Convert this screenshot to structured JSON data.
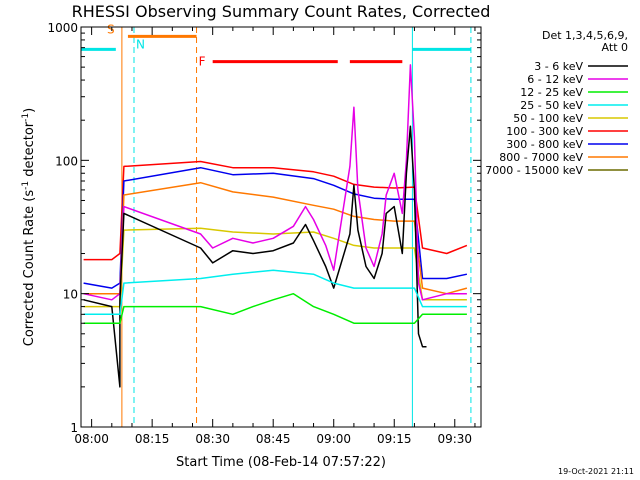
{
  "chart_data": {
    "type": "line",
    "title": "RHESSI Observing Summary Count Rates, Corrected",
    "xlabel": "Start Time (08-Feb-14 07:57:22)",
    "ylabel_main": "Corrected Count Rate (s",
    "ylabel_sup1": "-1",
    "ylabel_mid": " detector",
    "ylabel_sup2": "-1",
    "ylabel_end": ")",
    "xlim": [
      "07:57:22",
      "09:36:30"
    ],
    "ylim": [
      1,
      1000
    ],
    "yscale": "log",
    "x_ticks": [
      "08:00",
      "08:15",
      "08:30",
      "08:45",
      "09:00",
      "09:15",
      "09:30"
    ],
    "y_ticks": [
      {
        "label": "1",
        "value": 1
      },
      {
        "label": "10",
        "value": 10
      },
      {
        "label": "100",
        "value": 100
      },
      {
        "label": "1000",
        "value": 1000
      }
    ],
    "legend": {
      "header1": "Det 1,3,4,5,6,9,",
      "header2": "Att 0",
      "placement": "right",
      "entries": [
        {
          "label": "3 - 6 keV",
          "color": "#000000"
        },
        {
          "label": "6 - 12 keV",
          "color": "#e600e6"
        },
        {
          "label": "12 - 25 keV",
          "color": "#00ee00"
        },
        {
          "label": "25 - 50 keV",
          "color": "#00eeee"
        },
        {
          "label": "50 - 100 keV",
          "color": "#d8c800"
        },
        {
          "label": "100 - 300 keV",
          "color": "#ff0000"
        },
        {
          "label": "300 - 800 keV",
          "color": "#0000ee"
        },
        {
          "label": "800 - 7000 keV",
          "color": "#ff7800"
        },
        {
          "label": "7000 - 15000 keV",
          "color": "#6b6b00"
        }
      ]
    },
    "flags": [
      {
        "label": "S",
        "color": "#ff7800",
        "start": "07:57:22",
        "end": "08:06:00",
        "level": 850
      },
      {
        "label": "N",
        "color": "#00e5e5",
        "start": "08:09:00",
        "end": "08:15:00",
        "level": 850
      },
      {
        "label": "F",
        "color": "#ff0000",
        "start": "08:30:00",
        "end": "09:01:00",
        "level": 550
      }
    ],
    "cyan_bars": [
      {
        "start": "07:57:22",
        "end": "08:06:00",
        "level": 680
      },
      {
        "start": "09:19:30",
        "end": "09:34:00",
        "level": 680
      }
    ],
    "orange_bars": [
      {
        "start": "08:09:00",
        "end": "08:26:00",
        "level": 850
      }
    ],
    "red_bars": [
      {
        "start": "08:30:00",
        "end": "09:01:00",
        "level": 550
      },
      {
        "start": "09:04:00",
        "end": "09:17:00",
        "level": 550
      }
    ],
    "vlines": [
      {
        "time": "07:57:22",
        "color": "#00e5e5",
        "style": "solid"
      },
      {
        "time": "08:07:30",
        "color": "#ff7800",
        "style": "solid"
      },
      {
        "time": "08:10:30",
        "color": "#00e5e5",
        "style": "dashed"
      },
      {
        "time": "08:26:00",
        "color": "#ff7800",
        "style": "dashed"
      },
      {
        "time": "09:19:30",
        "color": "#00e5e5",
        "style": "solid"
      },
      {
        "time": "09:34:00",
        "color": "#00e5e5",
        "style": "dashed"
      }
    ],
    "series": [
      {
        "name": "100 - 300 keV",
        "color": "#ff0000",
        "x": [
          "07:58",
          "08:05",
          "08:07",
          "08:08",
          "08:27",
          "08:35",
          "08:45",
          "08:55",
          "09:00",
          "09:05",
          "09:10",
          "09:15",
          "09:20",
          "09:22",
          "09:28",
          "09:33"
        ],
        "y": [
          18,
          18,
          20,
          90,
          98,
          88,
          88,
          82,
          76,
          66,
          63,
          62,
          63,
          22,
          20,
          23
        ]
      },
      {
        "name": "300 - 800 keV",
        "color": "#0000ee",
        "x": [
          "07:58",
          "08:05",
          "08:07",
          "08:08",
          "08:27",
          "08:35",
          "08:45",
          "08:55",
          "09:00",
          "09:05",
          "09:10",
          "09:15",
          "09:20",
          "09:22",
          "09:28",
          "09:33"
        ],
        "y": [
          12,
          11,
          12,
          70,
          88,
          78,
          80,
          73,
          65,
          56,
          52,
          51,
          51,
          13,
          13,
          14
        ]
      },
      {
        "name": "800 - 7000 keV",
        "color": "#ff7800",
        "x": [
          "07:58",
          "08:05",
          "08:07",
          "08:08",
          "08:27",
          "08:35",
          "08:45",
          "08:55",
          "09:00",
          "09:05",
          "09:10",
          "09:15",
          "09:20",
          "09:22",
          "09:28",
          "09:33"
        ],
        "y": [
          10,
          10,
          10,
          55,
          68,
          58,
          53,
          46,
          43,
          38,
          36,
          35,
          35,
          11,
          10,
          11
        ]
      },
      {
        "name": "50 - 100 keV",
        "color": "#d8c800",
        "x": [
          "07:58",
          "08:05",
          "08:07",
          "08:08",
          "08:27",
          "08:35",
          "08:45",
          "08:55",
          "09:00",
          "09:05",
          "09:10",
          "09:15",
          "09:20",
          "09:22",
          "09:28",
          "09:33"
        ],
        "y": [
          8,
          8,
          8,
          30,
          31,
          29,
          28,
          29,
          26,
          23,
          22,
          22,
          22,
          9,
          9,
          9
        ]
      },
      {
        "name": "6 - 12 keV",
        "color": "#e600e6",
        "x": [
          "07:58",
          "08:05",
          "08:07",
          "08:08",
          "08:27",
          "08:30",
          "08:35",
          "08:40",
          "08:45",
          "08:50",
          "08:53",
          "08:55",
          "08:58",
          "09:00",
          "09:04",
          "09:05",
          "09:06",
          "09:08",
          "09:10",
          "09:12",
          "09:13",
          "09:15",
          "09:17",
          "09:18",
          "09:19",
          "09:20",
          "09:21",
          "09:22",
          "09:28",
          "09:33"
        ],
        "y": [
          10,
          9,
          10,
          45,
          28,
          22,
          26,
          24,
          26,
          32,
          45,
          36,
          23,
          15,
          90,
          250,
          60,
          22,
          16,
          28,
          55,
          80,
          40,
          100,
          520,
          150,
          12,
          9,
          10,
          10
        ]
      },
      {
        "name": "3 - 6 keV",
        "color": "#000000",
        "x": [
          "07:58",
          "08:05",
          "08:07",
          "08:07",
          "08:08",
          "08:27",
          "08:30",
          "08:35",
          "08:40",
          "08:45",
          "08:50",
          "08:53",
          "08:55",
          "08:58",
          "09:00",
          "09:04",
          "09:05",
          "09:06",
          "09:08",
          "09:10",
          "09:12",
          "09:13",
          "09:15",
          "09:17",
          "09:18",
          "09:19",
          "09:20",
          "09:21",
          "09:22",
          "09:23"
        ],
        "y": [
          9,
          8,
          2,
          9,
          40,
          22,
          17,
          21,
          20,
          21,
          24,
          33,
          25,
          16,
          11,
          28,
          65,
          30,
          16,
          13,
          20,
          40,
          45,
          20,
          80,
          180,
          60,
          5,
          4,
          4
        ]
      },
      {
        "name": "25 - 50 keV",
        "color": "#00eeee",
        "x": [
          "07:58",
          "08:05",
          "08:07",
          "08:08",
          "08:27",
          "08:35",
          "08:45",
          "08:55",
          "09:00",
          "09:05",
          "09:10",
          "09:15",
          "09:20",
          "09:22",
          "09:28",
          "09:33"
        ],
        "y": [
          7,
          7,
          7,
          12,
          13,
          14,
          15,
          14,
          12,
          11,
          11,
          11,
          11,
          8,
          8,
          8
        ]
      },
      {
        "name": "12 - 25 keV",
        "color": "#00ee00",
        "x": [
          "07:58",
          "08:05",
          "08:07",
          "08:08",
          "08:27",
          "08:35",
          "08:40",
          "08:45",
          "08:50",
          "08:55",
          "09:00",
          "09:05",
          "09:10",
          "09:15",
          "09:20",
          "09:22",
          "09:28",
          "09:33"
        ],
        "y": [
          6,
          6,
          6,
          8,
          8,
          7,
          8,
          9,
          10,
          8,
          7,
          6,
          6,
          6,
          6,
          7,
          7,
          7
        ]
      }
    ],
    "grid": false
  },
  "footer": {
    "timestamp": "19-Oct-2021 21:11"
  }
}
